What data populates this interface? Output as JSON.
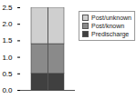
{
  "chart_data": {
    "type": "bar",
    "stacked": true,
    "legend": "right",
    "categories": [
      null
    ],
    "series": [
      {
        "name": "Predischarge",
        "color": "#404040",
        "values": [
          0.5
        ]
      },
      {
        "name": "Post/known",
        "color": "#8a8a8a",
        "values": [
          0.9
        ]
      },
      {
        "name": "Post/unknown",
        "color": "#cfcfcf",
        "values": [
          1.1
        ]
      }
    ],
    "ylim": [
      0,
      2.5
    ],
    "yticks": [
      0,
      0.5,
      1,
      1.5,
      2,
      2.5
    ],
    "grid": false
  }
}
